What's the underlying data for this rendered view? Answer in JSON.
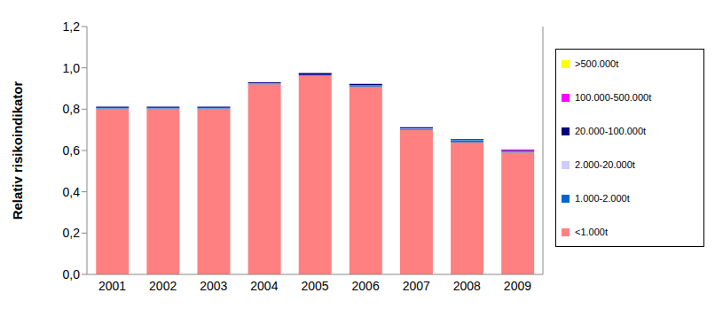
{
  "chart_data": {
    "type": "bar",
    "stacked": true,
    "grid": false,
    "legend": "right",
    "y_label": "Relativ risikoindikator",
    "categories": [
      "2001",
      "2002",
      "2003",
      "2004",
      "2005",
      "2006",
      "2007",
      "2008",
      "2009"
    ],
    "ylim": [
      0,
      1.2
    ],
    "yticks": [
      {
        "value": 0,
        "label": "0,0"
      },
      {
        "value": 0.2,
        "label": "0,2"
      },
      {
        "value": 0.4,
        "label": "0,4"
      },
      {
        "value": 0.6,
        "label": "0,6"
      },
      {
        "value": 0.8,
        "label": "0,8"
      },
      {
        "value": 1.0,
        "label": "1,0"
      },
      {
        "value": 1.2,
        "label": "1,2"
      }
    ],
    "series": [
      {
        "name": "<1.000t",
        "color": "#ff8080",
        "values": [
          0.8,
          0.8,
          0.8,
          0.92,
          0.96,
          0.91,
          0.7,
          0.64,
          0.59
        ]
      },
      {
        "name": "1.000-2.000t",
        "color": "#0066cc",
        "values": [
          0.005,
          0.005,
          0.005,
          0.003,
          0.003,
          0.003,
          0.005,
          0.01,
          0.005
        ]
      },
      {
        "name": "2.000-20.000t",
        "color": "#ccccff",
        "values": [
          0.002,
          0.002,
          0.002,
          0.002,
          0.002,
          0.002,
          0.002,
          0.002,
          0.002
        ]
      },
      {
        "name": "20.000-100.000t",
        "color": "#000080",
        "values": [
          0.005,
          0.005,
          0.005,
          0.005,
          0.01,
          0.008,
          0.005,
          0.004,
          0.004
        ]
      },
      {
        "name": "100.000-500.000t",
        "color": "#ff00ff",
        "values": [
          0,
          0,
          0,
          0,
          0,
          0,
          0,
          0,
          0.004
        ]
      },
      {
        "name": ">500.000t",
        "color": "#ffff00",
        "values": [
          0,
          0,
          0,
          0,
          0,
          0,
          0,
          0,
          0
        ]
      }
    ]
  }
}
